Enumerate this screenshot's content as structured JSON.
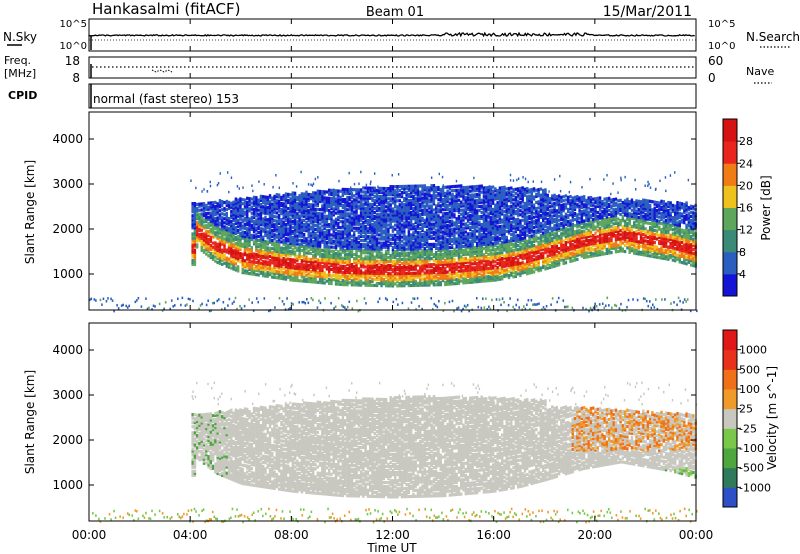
{
  "header": {
    "station": "Hankasalmi (fitACF)",
    "beam": "Beam 01",
    "date": "15/Mar/2011"
  },
  "noise_panel": {
    "left_label": "N.Sky",
    "right_label": "N.Search",
    "left_ticks": [
      "10^5",
      "10^0"
    ],
    "right_ticks": [
      "10^5",
      "10^0"
    ]
  },
  "freq_panel": {
    "left_label_line1": "Freq.",
    "left_label_line2": "[MHz]",
    "left_ticks": [
      "18",
      "8"
    ],
    "right_ticks": [
      "60",
      "0"
    ],
    "right_label": "Nave"
  },
  "cpid_panel": {
    "label": "CPID",
    "text": "normal (fast stereo) 153"
  },
  "chart_data": [
    {
      "type": "heatmap",
      "name": "power",
      "ylabel": "Slant Range [km]",
      "yticks": [
        "4000",
        "3000",
        "2000",
        "1000"
      ],
      "ylim": [
        200,
        4600
      ],
      "xlim": [
        0,
        24
      ],
      "colorbar": {
        "label": "Power [dB]",
        "ticks": [
          "28",
          "24",
          "20",
          "16",
          "12",
          "8",
          "4"
        ],
        "colors": [
          "#1414d6",
          "#2a5fc0",
          "#3a8a78",
          "#5ea65c",
          "#eec21c",
          "#f07c16",
          "#e9261e",
          "#d61313"
        ]
      },
      "bands": [
        {
          "t0": 4.2,
          "t1": 22.0,
          "r_center": [
            2000,
            1650,
            1420,
            1250,
            1150,
            1120,
            1150,
            1250,
            1350,
            1500,
            1750,
            1900,
            1700
          ],
          "color": "#e9261e"
        },
        {
          "t0": 4.0,
          "t1": 24.0,
          "r_center": [
            2600,
            2200,
            1900,
            1750,
            1700,
            1700,
            1750,
            1850,
            2000,
            2150,
            2300,
            2400,
            1550
          ],
          "color": "#5ea65c"
        }
      ]
    },
    {
      "type": "heatmap",
      "name": "velocity",
      "ylabel": "Slant Range [km]",
      "yticks": [
        "4000",
        "3000",
        "2000",
        "1000"
      ],
      "ylim": [
        200,
        4600
      ],
      "xlim": [
        0,
        24
      ],
      "colorbar": {
        "label": "Velocity [m s^-1]",
        "ticks": [
          "1000",
          "500",
          "100",
          "25",
          "-25",
          "-100",
          "-500",
          "-1000"
        ],
        "colors": [
          "#2d50c8",
          "#2e7a5a",
          "#4ea63e",
          "#79c84a",
          "#c8c8c0",
          "#f09a2a",
          "#f07018",
          "#e8301a",
          "#e01818"
        ]
      }
    }
  ],
  "x_axis": {
    "ticks": [
      "00:00",
      "04:00",
      "08:00",
      "12:00",
      "16:00",
      "20:00",
      "00:00"
    ],
    "title": "Time UT"
  }
}
